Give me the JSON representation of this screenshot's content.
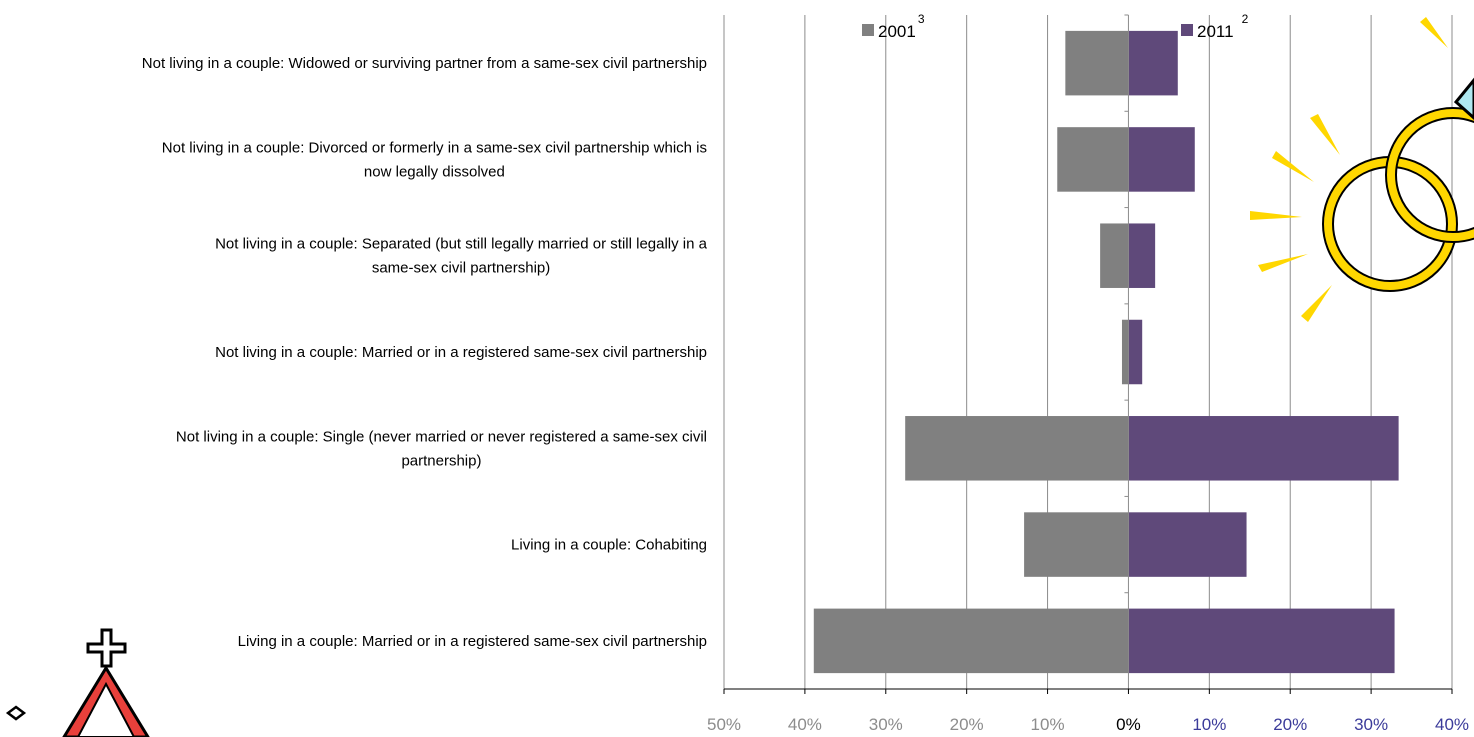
{
  "chart_data": {
    "type": "bar",
    "orientation": "horizontal",
    "layout": "back-to-back",
    "categories": [
      "Living in a couple: Married or in a registered same-sex civil partnership",
      "Living in a couple: Cohabiting",
      "Not living in a couple: Single (never married or never registered a same-sex civil partnership)",
      "Not living in a couple: Married or in a registered same-sex civil partnership",
      "Not living in a couple: Separated (but still legally married or still legally in a same-sex civil partnership)",
      "Not living in a couple: Divorced or formerly in a same-sex civil partnership which is now legally dissolved",
      "Not living in a couple: Widowed or surviving partner from a same-sex civil partnership"
    ],
    "series": [
      {
        "name": "2001",
        "superscript": "3",
        "color": "#808080",
        "side": "left",
        "values": [
          38.9,
          12.9,
          27.6,
          0.8,
          3.5,
          8.8,
          7.8
        ]
      },
      {
        "name": "2011",
        "superscript": "2",
        "color": "#5f497a",
        "side": "right",
        "values": [
          32.9,
          14.6,
          33.4,
          1.7,
          3.3,
          8.2,
          6.1
        ]
      }
    ],
    "xlim": [
      -50,
      40
    ],
    "xticks": [
      "50%",
      "40%",
      "30%",
      "20%",
      "10%",
      "0%",
      "10%",
      "20%",
      "30%",
      "40%"
    ],
    "tick_colors": {
      "left": "#8c8c8c",
      "zero": "#000000",
      "right": "#3b3b9a"
    },
    "grid": true,
    "legend_position": "top"
  }
}
